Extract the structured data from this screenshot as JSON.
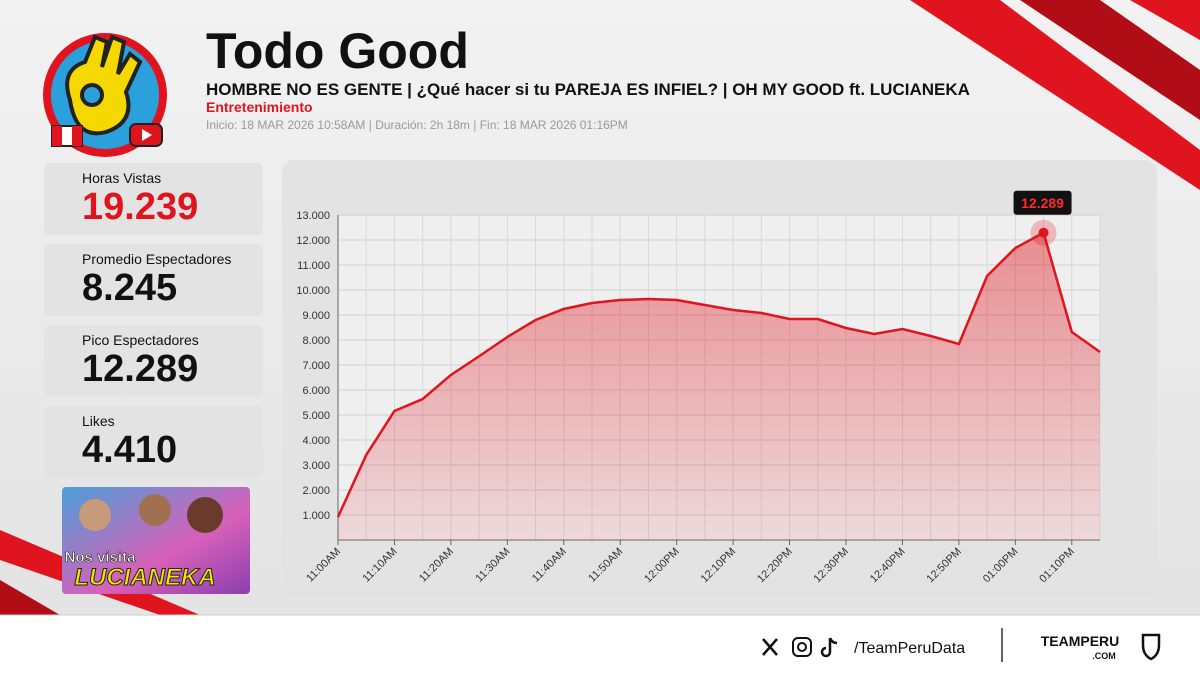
{
  "header": {
    "channel": "Todo Good",
    "stream_title": "HOMBRE NO ES GENTE | ¿Qué hacer si tu PAREJA ES INFIEL? | OH MY GOOD ft. LUCIANEKA",
    "category": "Entretenimiento",
    "info": "Inicio: 18 MAR 2026 10:58AM  |  Duración: 2h 18m  |  Fin: 18 MAR 2026 01:16PM"
  },
  "stats": [
    {
      "label": "Horas Vistas",
      "value": "19.239"
    },
    {
      "label": "Promedio Espectadores",
      "value": "8.245"
    },
    {
      "label": "Pico Espectadores",
      "value": "12.289"
    },
    {
      "label": "Likes",
      "value": "4.410"
    }
  ],
  "thumbnail": {
    "line1": "Nos visita",
    "line2": "LUCIANEKA"
  },
  "footer": {
    "handle": "/TeamPeruData",
    "brand": "TEAMPERU",
    "brand_sub": ".COM"
  },
  "chart_data": {
    "type": "area",
    "color": "#e0141e",
    "categories": [
      "11:00AM",
      null,
      "11:10AM",
      null,
      "11:20AM",
      null,
      "11:30AM",
      null,
      "11:40AM",
      null,
      "11:50AM",
      null,
      "12:00PM",
      null,
      "12:10PM",
      null,
      "12:20PM",
      null,
      "12:30PM",
      null,
      "12:40PM",
      null,
      "12:50PM",
      null,
      "01:00PM",
      null,
      "01:10PM",
      null
    ],
    "values": [
      920,
      3400,
      5160,
      5640,
      6600,
      7350,
      8120,
      8800,
      9240,
      9480,
      9600,
      9640,
      9600,
      9400,
      9200,
      9080,
      8840,
      8840,
      8480,
      8240,
      8440,
      8160,
      7840,
      10560,
      11680,
      12289,
      8320,
      7520
    ],
    "value_labels": [
      null,
      null,
      null,
      null,
      null,
      null,
      null,
      null,
      null,
      null,
      null,
      null,
      null,
      null,
      null,
      null,
      null,
      null,
      null,
      null,
      null,
      null,
      null,
      null,
      null,
      "12.289",
      null,
      null
    ],
    "ylim": [
      0,
      13000
    ],
    "yticks": [
      {
        "value": 1000,
        "label": "1.000"
      },
      {
        "value": 2000,
        "label": "2.000"
      },
      {
        "value": 3000,
        "label": "3.000"
      },
      {
        "value": 4000,
        "label": "4.000"
      },
      {
        "value": 5000,
        "label": "5.000"
      },
      {
        "value": 6000,
        "label": "6.000"
      },
      {
        "value": 7000,
        "label": "7.000"
      },
      {
        "value": 8000,
        "label": "8.000"
      },
      {
        "value": 9000,
        "label": "9.000"
      },
      {
        "value": 10000,
        "label": "10.000"
      },
      {
        "value": 11000,
        "label": "11.000"
      },
      {
        "value": 12000,
        "label": "12.000"
      },
      {
        "value": 13000,
        "label": "13.000"
      }
    ],
    "grid": true
  }
}
